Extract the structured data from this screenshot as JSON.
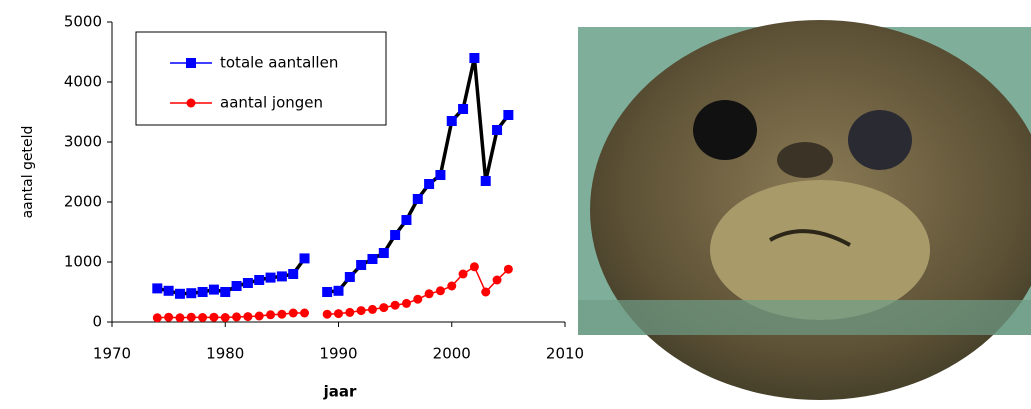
{
  "chart_data": {
    "type": "line",
    "xlabel": "jaar",
    "ylabel": "aantal geteld",
    "x": [
      1974,
      1975,
      1976,
      1977,
      1978,
      1979,
      1980,
      1981,
      1982,
      1983,
      1984,
      1985,
      1986,
      1987,
      1988,
      1989,
      1990,
      1991,
      1992,
      1993,
      1994,
      1995,
      1996,
      1997,
      1998,
      1999,
      2000,
      2001,
      2002,
      2003,
      2004,
      2005
    ],
    "series": [
      {
        "name": "totale aantallen",
        "color": "#0000ff",
        "marker": "square",
        "values": [
          560,
          520,
          470,
          480,
          500,
          540,
          500,
          600,
          650,
          700,
          740,
          760,
          800,
          1060,
          null,
          500,
          520,
          750,
          950,
          1050,
          1150,
          1450,
          1700,
          2050,
          2300,
          2450,
          3350,
          3550,
          4400,
          2350,
          3200,
          3450
        ]
      },
      {
        "name": "aantal jongen",
        "color": "#ff0000",
        "marker": "circle",
        "values": [
          70,
          80,
          70,
          80,
          75,
          80,
          75,
          85,
          90,
          100,
          120,
          130,
          150,
          150,
          null,
          130,
          140,
          160,
          190,
          210,
          240,
          280,
          310,
          380,
          470,
          520,
          600,
          800,
          920,
          500,
          700,
          880
        ]
      }
    ],
    "xlim": [
      1970,
      2010
    ],
    "xticks": [
      1970,
      1980,
      1990,
      2000,
      2010
    ],
    "ylim": [
      0,
      5000
    ],
    "yticks": [
      0,
      1000,
      2000,
      3000,
      4000,
      5000
    ]
  }
}
